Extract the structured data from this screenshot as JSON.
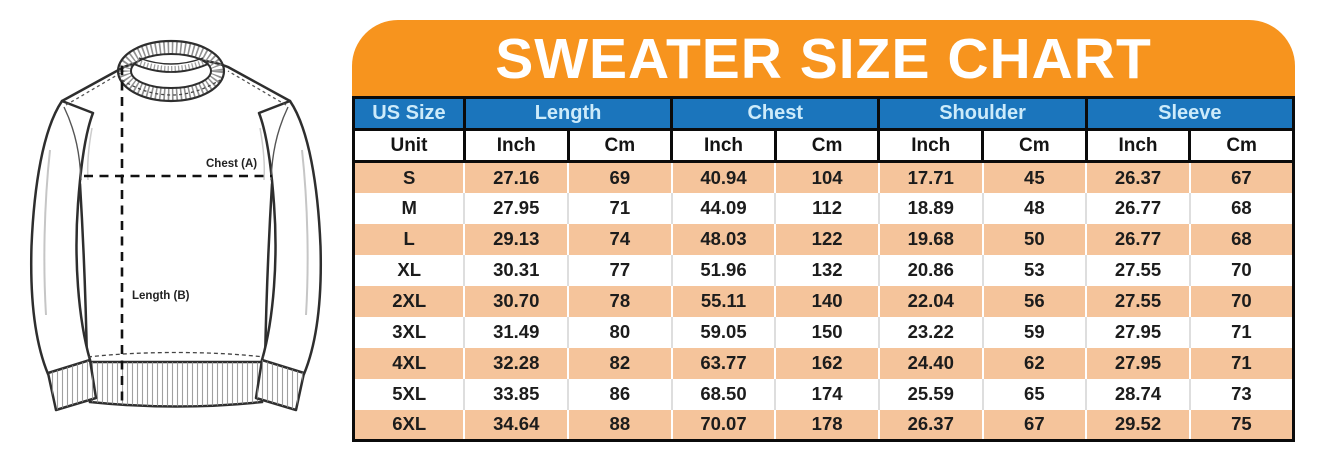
{
  "title": "SWEATER SIZE CHART",
  "colors": {
    "banner_orange": "#F7941E",
    "header_blue": "#1B75BC",
    "header_text_blue": "#CDEBFA",
    "row_peach": "#F5C49B",
    "row_white": "#FFFFFF",
    "border_black": "#0B0B0B"
  },
  "illustration": {
    "chest_label": "Chest (A)",
    "length_label": "Length (B)"
  },
  "table": {
    "size_column_header": "US Size",
    "unit_row_label": "Unit",
    "groups": [
      {
        "label": "Length",
        "units": [
          "Inch",
          "Cm"
        ]
      },
      {
        "label": "Chest",
        "units": [
          "Inch",
          "Cm"
        ]
      },
      {
        "label": "Shoulder",
        "units": [
          "Inch",
          "Cm"
        ]
      },
      {
        "label": "Sleeve",
        "units": [
          "Inch",
          "Cm"
        ]
      }
    ],
    "rows": [
      {
        "size": "S",
        "values": [
          "27.16",
          "69",
          "40.94",
          "104",
          "17.71",
          "45",
          "26.37",
          "67"
        ]
      },
      {
        "size": "M",
        "values": [
          "27.95",
          "71",
          "44.09",
          "112",
          "18.89",
          "48",
          "26.77",
          "68"
        ]
      },
      {
        "size": "L",
        "values": [
          "29.13",
          "74",
          "48.03",
          "122",
          "19.68",
          "50",
          "26.77",
          "68"
        ]
      },
      {
        "size": "XL",
        "values": [
          "30.31",
          "77",
          "51.96",
          "132",
          "20.86",
          "53",
          "27.55",
          "70"
        ]
      },
      {
        "size": "2XL",
        "values": [
          "30.70",
          "78",
          "55.11",
          "140",
          "22.04",
          "56",
          "27.55",
          "70"
        ]
      },
      {
        "size": "3XL",
        "values": [
          "31.49",
          "80",
          "59.05",
          "150",
          "23.22",
          "59",
          "27.95",
          "71"
        ]
      },
      {
        "size": "4XL",
        "values": [
          "32.28",
          "82",
          "63.77",
          "162",
          "24.40",
          "62",
          "27.95",
          "71"
        ]
      },
      {
        "size": "5XL",
        "values": [
          "33.85",
          "86",
          "68.50",
          "174",
          "25.59",
          "65",
          "28.74",
          "73"
        ]
      },
      {
        "size": "6XL",
        "values": [
          "34.64",
          "88",
          "70.07",
          "178",
          "26.37",
          "67",
          "29.52",
          "75"
        ]
      }
    ]
  }
}
